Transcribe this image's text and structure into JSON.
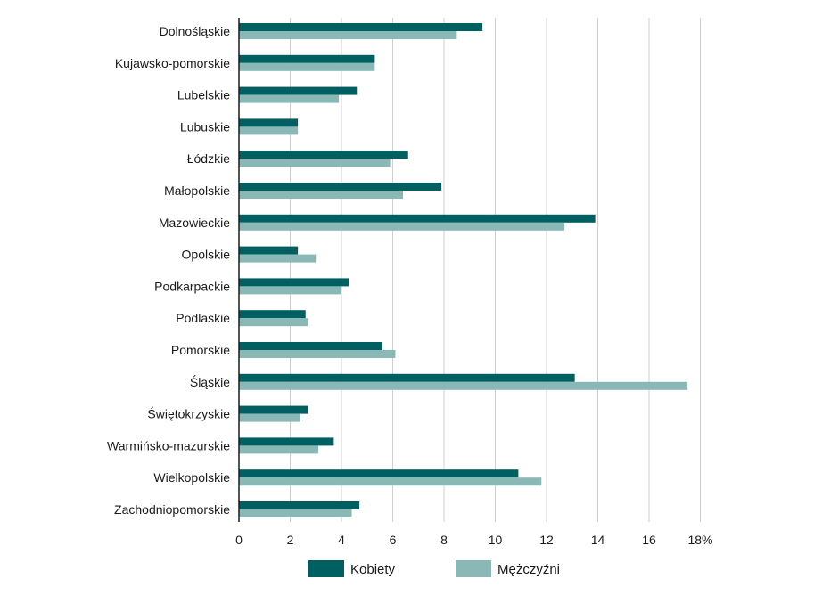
{
  "chart_data": {
    "type": "bar",
    "orientation": "horizontal",
    "categories": [
      "Dolnośląskie",
      "Kujawsko-pomorskie",
      "Lubelskie",
      "Lubuskie",
      "Łódzkie",
      "Małopolskie",
      "Mazowieckie",
      "Opolskie",
      "Podkarpackie",
      "Podlaskie",
      "Pomorskie",
      "Śląskie",
      "Świętokrzyskie",
      "Warmińsko-mazurskie",
      "Wielkopolskie",
      "Zachodniopomorskie"
    ],
    "series": [
      {
        "name": "Kobiety",
        "color": "#005f60",
        "values": [
          9.5,
          5.3,
          4.6,
          2.3,
          6.6,
          7.9,
          13.9,
          2.3,
          4.3,
          2.6,
          5.6,
          13.1,
          2.7,
          3.7,
          10.9,
          4.7
        ]
      },
      {
        "name": "Mężczyźni",
        "color": "#8ab8b6",
        "values": [
          8.5,
          5.3,
          3.9,
          2.3,
          5.9,
          6.4,
          12.7,
          3.0,
          4.0,
          2.7,
          6.1,
          17.5,
          2.4,
          3.1,
          11.8,
          4.4
        ]
      }
    ],
    "xlim": [
      0,
      18
    ],
    "xticks": [
      "0",
      "2",
      "4",
      "6",
      "8",
      "10",
      "12",
      "14",
      "16",
      "18%"
    ],
    "title": "",
    "xlabel": "",
    "ylabel": "",
    "legend_position": "bottom-center",
    "grid": true
  }
}
